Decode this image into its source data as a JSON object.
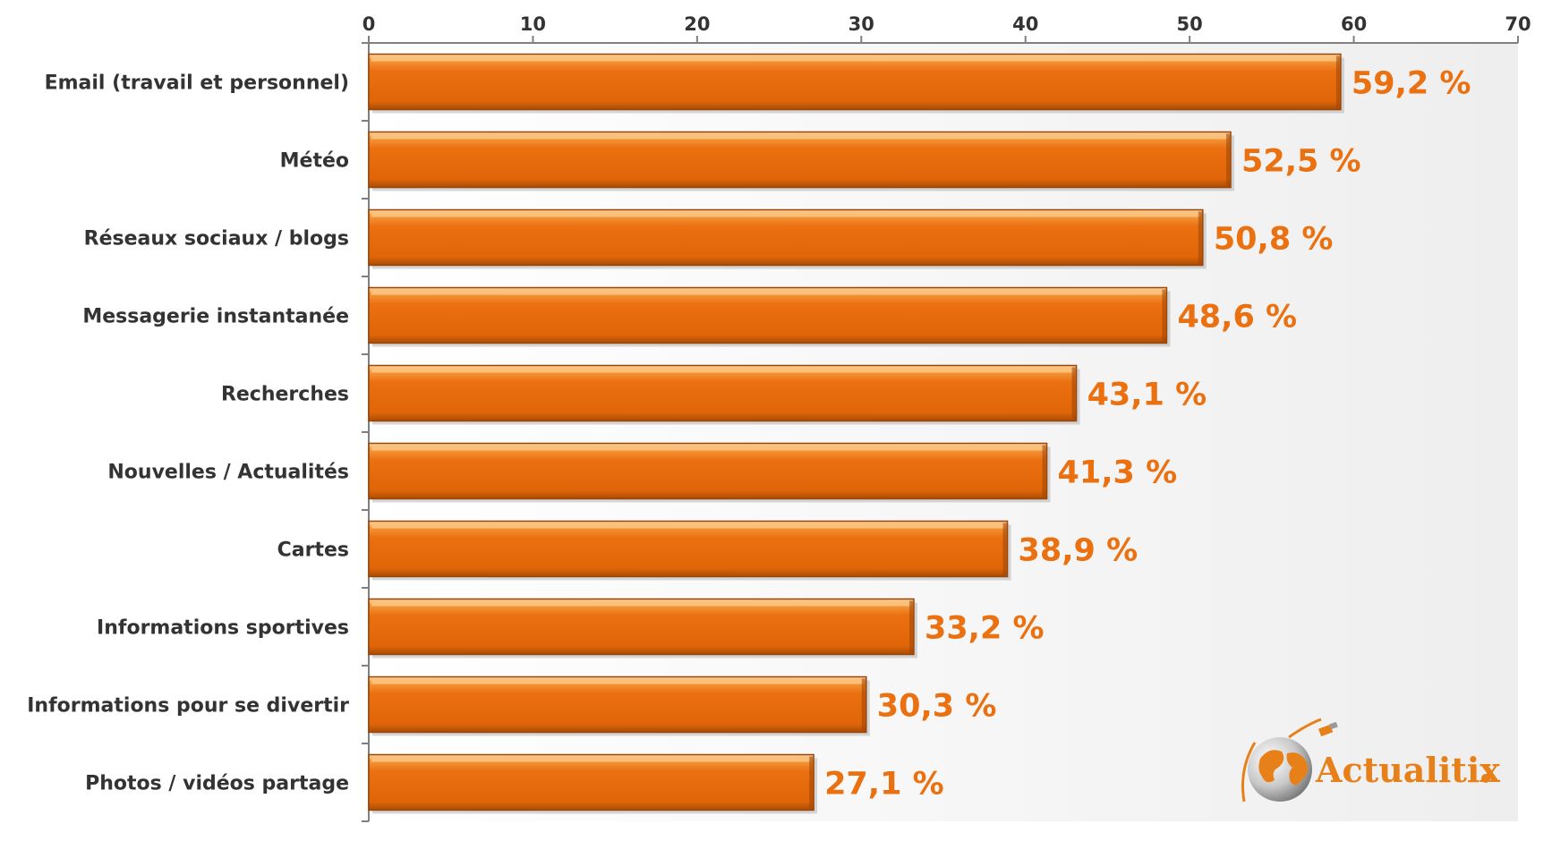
{
  "chart_data": {
    "type": "bar",
    "orientation": "horizontal",
    "categories": [
      "Email (travail et personnel)",
      "Météo",
      "Réseaux sociaux / blogs",
      "Messagerie instantanée",
      "Recherches",
      "Nouvelles / Actualités",
      "Cartes",
      "Informations sportives",
      "Informations pour se divertir",
      "Photos / vidéos partage"
    ],
    "values": [
      59.2,
      52.5,
      50.8,
      48.6,
      43.1,
      41.3,
      38.9,
      33.2,
      30.3,
      27.1
    ],
    "data_labels": [
      "59,2 %",
      "52,5 %",
      "50,8 %",
      "48,6 %",
      "43,1 %",
      "41,3 %",
      "38,9 %",
      "33,2 %",
      "30,3 %",
      "27,1 %"
    ],
    "xlim": [
      0,
      70
    ],
    "x_ticks": [
      0,
      10,
      20,
      30,
      40,
      50,
      60,
      70
    ],
    "axis_position": "top",
    "grid": false,
    "title": "",
    "xlabel": "",
    "ylabel": ""
  },
  "colors": {
    "bar": "#EB7010",
    "bar_dark": "#9A4508",
    "bar_light": "#FBC380",
    "label": "#EB7010",
    "text": "#333333",
    "plot_bg": "#F2F2F2",
    "axis": "#808080"
  },
  "logo": {
    "text": "Actualitix",
    "icon": "globe-with-cable-icon"
  }
}
